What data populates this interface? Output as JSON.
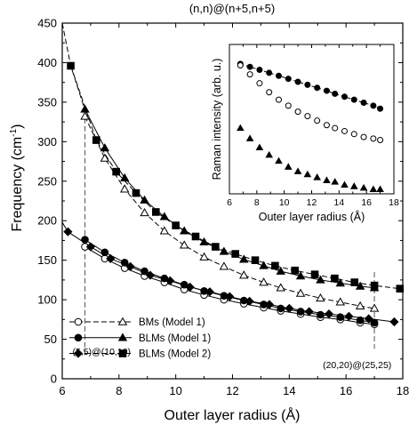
{
  "chart_data": [
    {
      "type": "line",
      "title": "(n,n)@(n+5,n+5)",
      "xlabel": "Outer layer radius (Å)",
      "ylabel": "Frequency (cm⁻¹)",
      "ylabel_main": "Frequency (cm",
      "ylabel_sup": "-1",
      "ylabel_close": ")",
      "xlim": [
        6,
        18
      ],
      "ylim": [
        0,
        450
      ],
      "xticks": [
        6,
        8,
        10,
        12,
        14,
        16,
        18
      ],
      "xtick_labels": [
        "6",
        "8",
        "10",
        "12",
        "14",
        "16",
        "18"
      ],
      "yticks": [
        0,
        50,
        100,
        150,
        200,
        250,
        300,
        350,
        400,
        450
      ],
      "ytick_labels": [
        "0",
        "50",
        "100",
        "150",
        "200",
        "250",
        "300",
        "350",
        "400",
        "450"
      ],
      "legend_position": "bottom-left",
      "annotations": [
        {
          "text": "(5,5)@(10,10)",
          "x": 6.8
        },
        {
          "text": "(20,20)@(25,25)",
          "x": 17.0
        }
      ],
      "series": [
        {
          "name": "BMs (Model 1)",
          "marker": "circle-open",
          "x": [
            6.8,
            7.5,
            8.2,
            8.9,
            9.6,
            10.3,
            11.0,
            11.7,
            12.4,
            13.1,
            13.7,
            14.4,
            15.1,
            15.8,
            16.5,
            17.0
          ],
          "y": [
            167,
            152,
            140,
            130,
            122,
            113,
            106,
            100,
            95,
            90,
            86,
            82,
            78,
            75,
            71,
            69
          ]
        },
        {
          "name": "BMs (Model 1)",
          "marker": "triangle-open",
          "x": [
            6.8,
            7.5,
            8.2,
            8.9,
            9.6,
            10.3,
            11.0,
            11.7,
            12.4,
            13.1,
            13.7,
            14.4,
            15.1,
            15.8,
            16.5,
            17.0
          ],
          "y": [
            332,
            279,
            240,
            210,
            187,
            169,
            154,
            142,
            131,
            122,
            115,
            108,
            102,
            97,
            92,
            89
          ]
        },
        {
          "name": "BLMs (Model 1)",
          "marker": "circle-filled",
          "x": [
            6.8,
            7.5,
            8.2,
            8.9,
            9.6,
            10.3,
            11.0,
            11.7,
            12.4,
            13.1,
            13.7,
            14.4,
            15.1,
            15.8,
            16.5,
            17.0
          ],
          "y": [
            176,
            160,
            147,
            136,
            127,
            119,
            111,
            105,
            99,
            94,
            89,
            85,
            81,
            78,
            74,
            71
          ]
        },
        {
          "name": "BLMs (Model 1)",
          "marker": "triangle-filled",
          "x": [
            6.8,
            7.5,
            8.2,
            8.9,
            9.6,
            10.3,
            11.0,
            11.7,
            12.4,
            13.1,
            13.7,
            14.4,
            15.1,
            15.8,
            16.5,
            17.0
          ],
          "y": [
            341,
            292,
            254,
            226,
            205,
            187,
            173,
            161,
            151,
            143,
            136,
            130,
            125,
            121,
            117,
            115
          ]
        },
        {
          "name": "BLMs (Model 2)",
          "marker": "diamond-filled",
          "x": [
            6.2,
            7.0,
            7.7,
            8.4,
            9.1,
            9.8,
            10.5,
            11.2,
            11.9,
            12.6,
            13.3,
            14.0,
            14.7,
            15.4,
            16.1,
            16.8,
            17.7
          ],
          "y": [
            186,
            167,
            152,
            142,
            131,
            124,
            116,
            110,
            104,
            98,
            94,
            89,
            85,
            82,
            79,
            76,
            72
          ]
        },
        {
          "name": "BLMs (Model 2)",
          "marker": "square-filled",
          "x": [
            6.3,
            7.2,
            7.9,
            8.6,
            9.3,
            10.0,
            10.7,
            11.4,
            12.1,
            12.8,
            13.5,
            14.2,
            14.9,
            15.6,
            16.3,
            17.0,
            17.9
          ],
          "y": [
            396,
            302,
            262,
            235,
            211,
            194,
            180,
            167,
            158,
            150,
            143,
            137,
            132,
            127,
            122,
            118,
            114
          ]
        }
      ],
      "legend": [
        {
          "label": "BMs (Model 1)"
        },
        {
          "label": "BLMs (Model 1)"
        },
        {
          "label": "BLMs (Model 2)"
        }
      ]
    },
    {
      "type": "scatter",
      "title": "",
      "xlabel": "Outer layer radius (Å)",
      "ylabel": "Raman intensity (arb. u.)",
      "xlim": [
        6,
        18
      ],
      "xticks": [
        6,
        8,
        10,
        12,
        14,
        16,
        18
      ],
      "xtick_labels": [
        "6",
        "8",
        "10",
        "12",
        "14",
        "16",
        "18"
      ],
      "yticks": [],
      "ylim": [
        0,
        1
      ],
      "series": [
        {
          "marker": "circle-filled",
          "x": [
            6.8,
            7.5,
            8.2,
            8.9,
            9.6,
            10.3,
            11.0,
            11.7,
            12.4,
            13.1,
            13.7,
            14.4,
            15.1,
            15.8,
            16.5,
            17.0
          ],
          "y": [
            0.87,
            0.85,
            0.83,
            0.81,
            0.79,
            0.77,
            0.75,
            0.73,
            0.71,
            0.69,
            0.67,
            0.65,
            0.63,
            0.61,
            0.59,
            0.57
          ]
        },
        {
          "marker": "circle-open",
          "x": [
            6.8,
            7.5,
            8.2,
            8.9,
            9.6,
            10.3,
            11.0,
            11.7,
            12.4,
            13.1,
            13.7,
            14.4,
            15.1,
            15.8,
            16.5,
            17.0
          ],
          "y": [
            0.86,
            0.8,
            0.74,
            0.68,
            0.63,
            0.59,
            0.55,
            0.52,
            0.49,
            0.46,
            0.44,
            0.42,
            0.4,
            0.38,
            0.37,
            0.36
          ]
        },
        {
          "marker": "triangle-filled",
          "x": [
            6.8,
            7.5,
            8.2,
            8.9,
            9.6,
            10.3,
            11.0,
            11.7,
            12.4,
            13.1,
            13.7,
            14.4,
            15.1,
            15.8,
            16.5,
            17.0
          ],
          "y": [
            0.44,
            0.37,
            0.31,
            0.26,
            0.22,
            0.18,
            0.15,
            0.13,
            0.11,
            0.09,
            0.08,
            0.06,
            0.05,
            0.04,
            0.03,
            0.03
          ]
        }
      ]
    }
  ]
}
